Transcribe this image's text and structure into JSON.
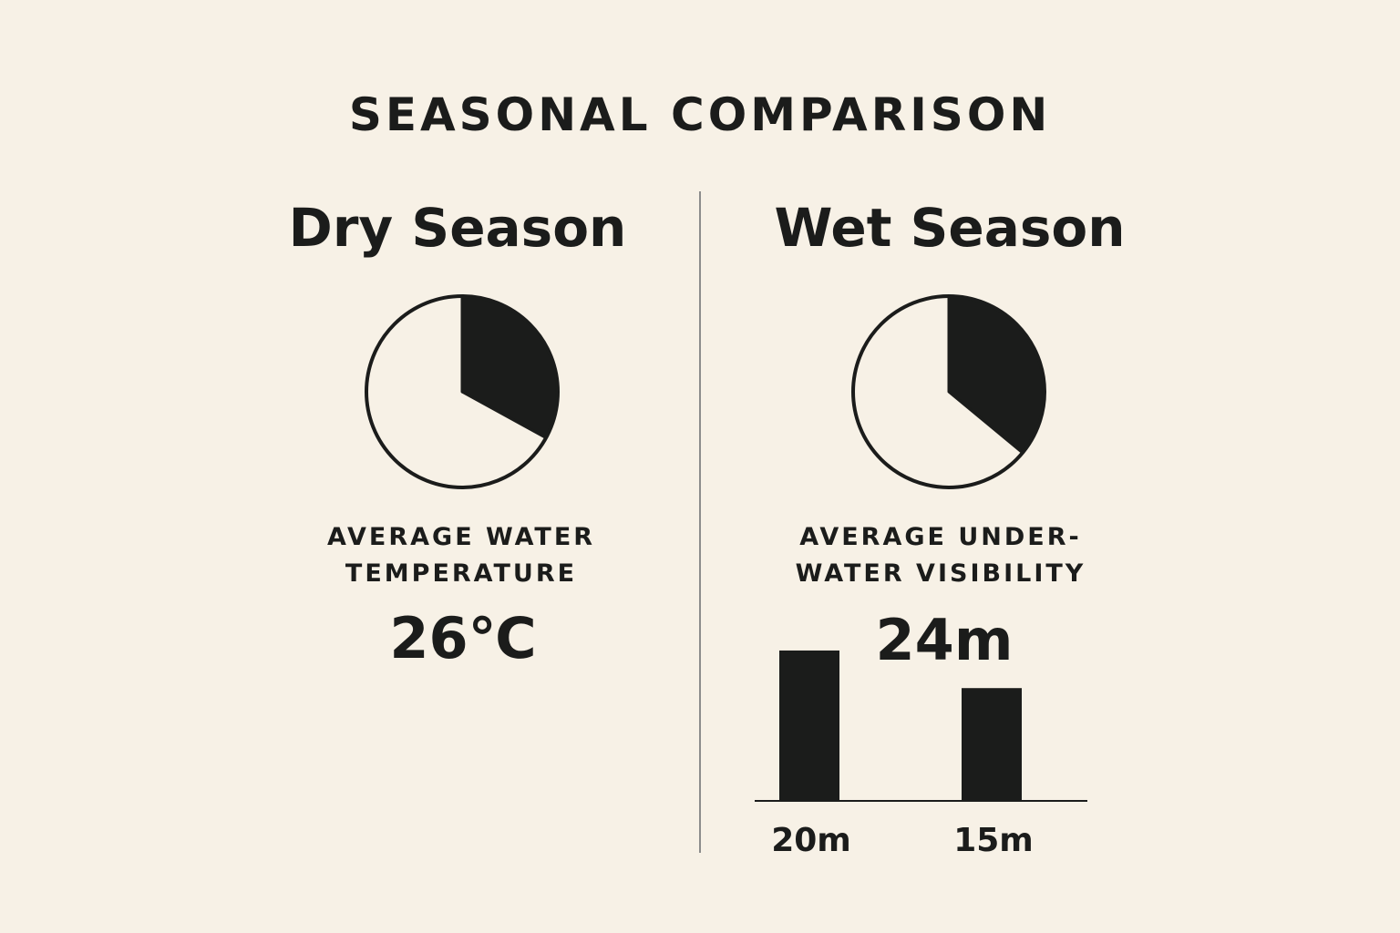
{
  "title": "SEASONAL COMPARISON",
  "colors": {
    "background": "#f7f1e6",
    "ink": "#1b1c1b",
    "divider": "#8c8c8c"
  },
  "panels": [
    {
      "title": "Dry Season",
      "metric_label_lines": [
        "AVERAGE WATER",
        "TEMPERATURE"
      ],
      "metric_value": "26℃"
    },
    {
      "title": "Wet Season",
      "metric_label_lines": [
        "AVERAGE UNDER-",
        "WATER VISIBILITY"
      ],
      "metric_value": "24m"
    }
  ],
  "chart_data": [
    {
      "type": "pie",
      "title": "",
      "values": [
        0.33,
        0.67
      ],
      "colors": [
        "#1b1c1b",
        "#f7f1e6"
      ]
    },
    {
      "type": "pie",
      "title": "",
      "values": [
        0.36,
        0.64
      ],
      "colors": [
        "#1b1c1b",
        "#f7f1e6"
      ]
    },
    {
      "type": "bar",
      "title": "",
      "categories": [
        "20m",
        "15m"
      ],
      "values": [
        20,
        15
      ],
      "ylim": [
        0,
        20.6
      ],
      "grid": false,
      "xlabel": "",
      "ylabel": ""
    }
  ]
}
